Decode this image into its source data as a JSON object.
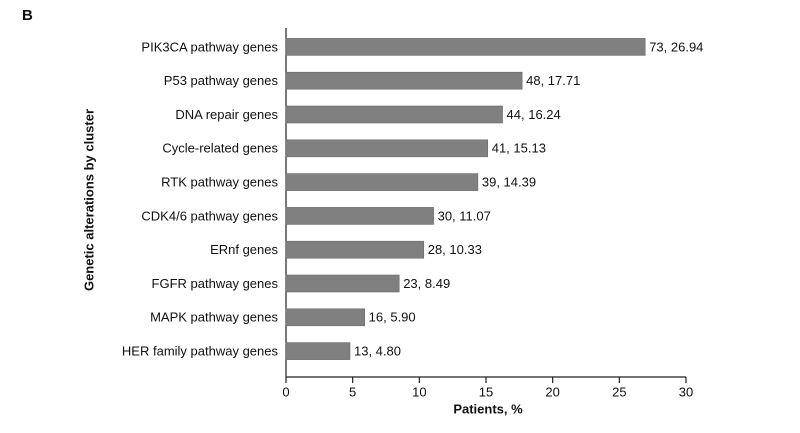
{
  "chart_data": {
    "type": "hbar",
    "panel_label": "B",
    "x_label": "Patients, %",
    "y_label": "Genetic alterations by cluster",
    "categories": [
      "PIK3CA pathway genes",
      "P53 pathway genes",
      "DNA repair genes",
      "Cycle-related genes",
      "RTK pathway genes",
      "CDK4/6 pathway genes",
      "ERnf genes",
      "FGFR pathway genes",
      "MAPK pathway genes",
      "HER family pathway genes"
    ],
    "values": [
      26.94,
      17.71,
      16.24,
      15.13,
      14.39,
      11.07,
      10.33,
      8.49,
      5.9,
      4.8
    ],
    "value_labels": [
      "73, 26.94",
      "48, 17.71",
      "44, 16.24",
      "41, 15.13",
      "39, 14.39",
      "30, 11.07",
      "28, 10.33",
      "23, 8.49",
      "16, 5.90",
      "13, 4.80"
    ],
    "color": "#808080",
    "xlim": [
      0,
      30
    ],
    "xticks": [
      0,
      5,
      10,
      15,
      20,
      25,
      30
    ],
    "grid": false
  }
}
